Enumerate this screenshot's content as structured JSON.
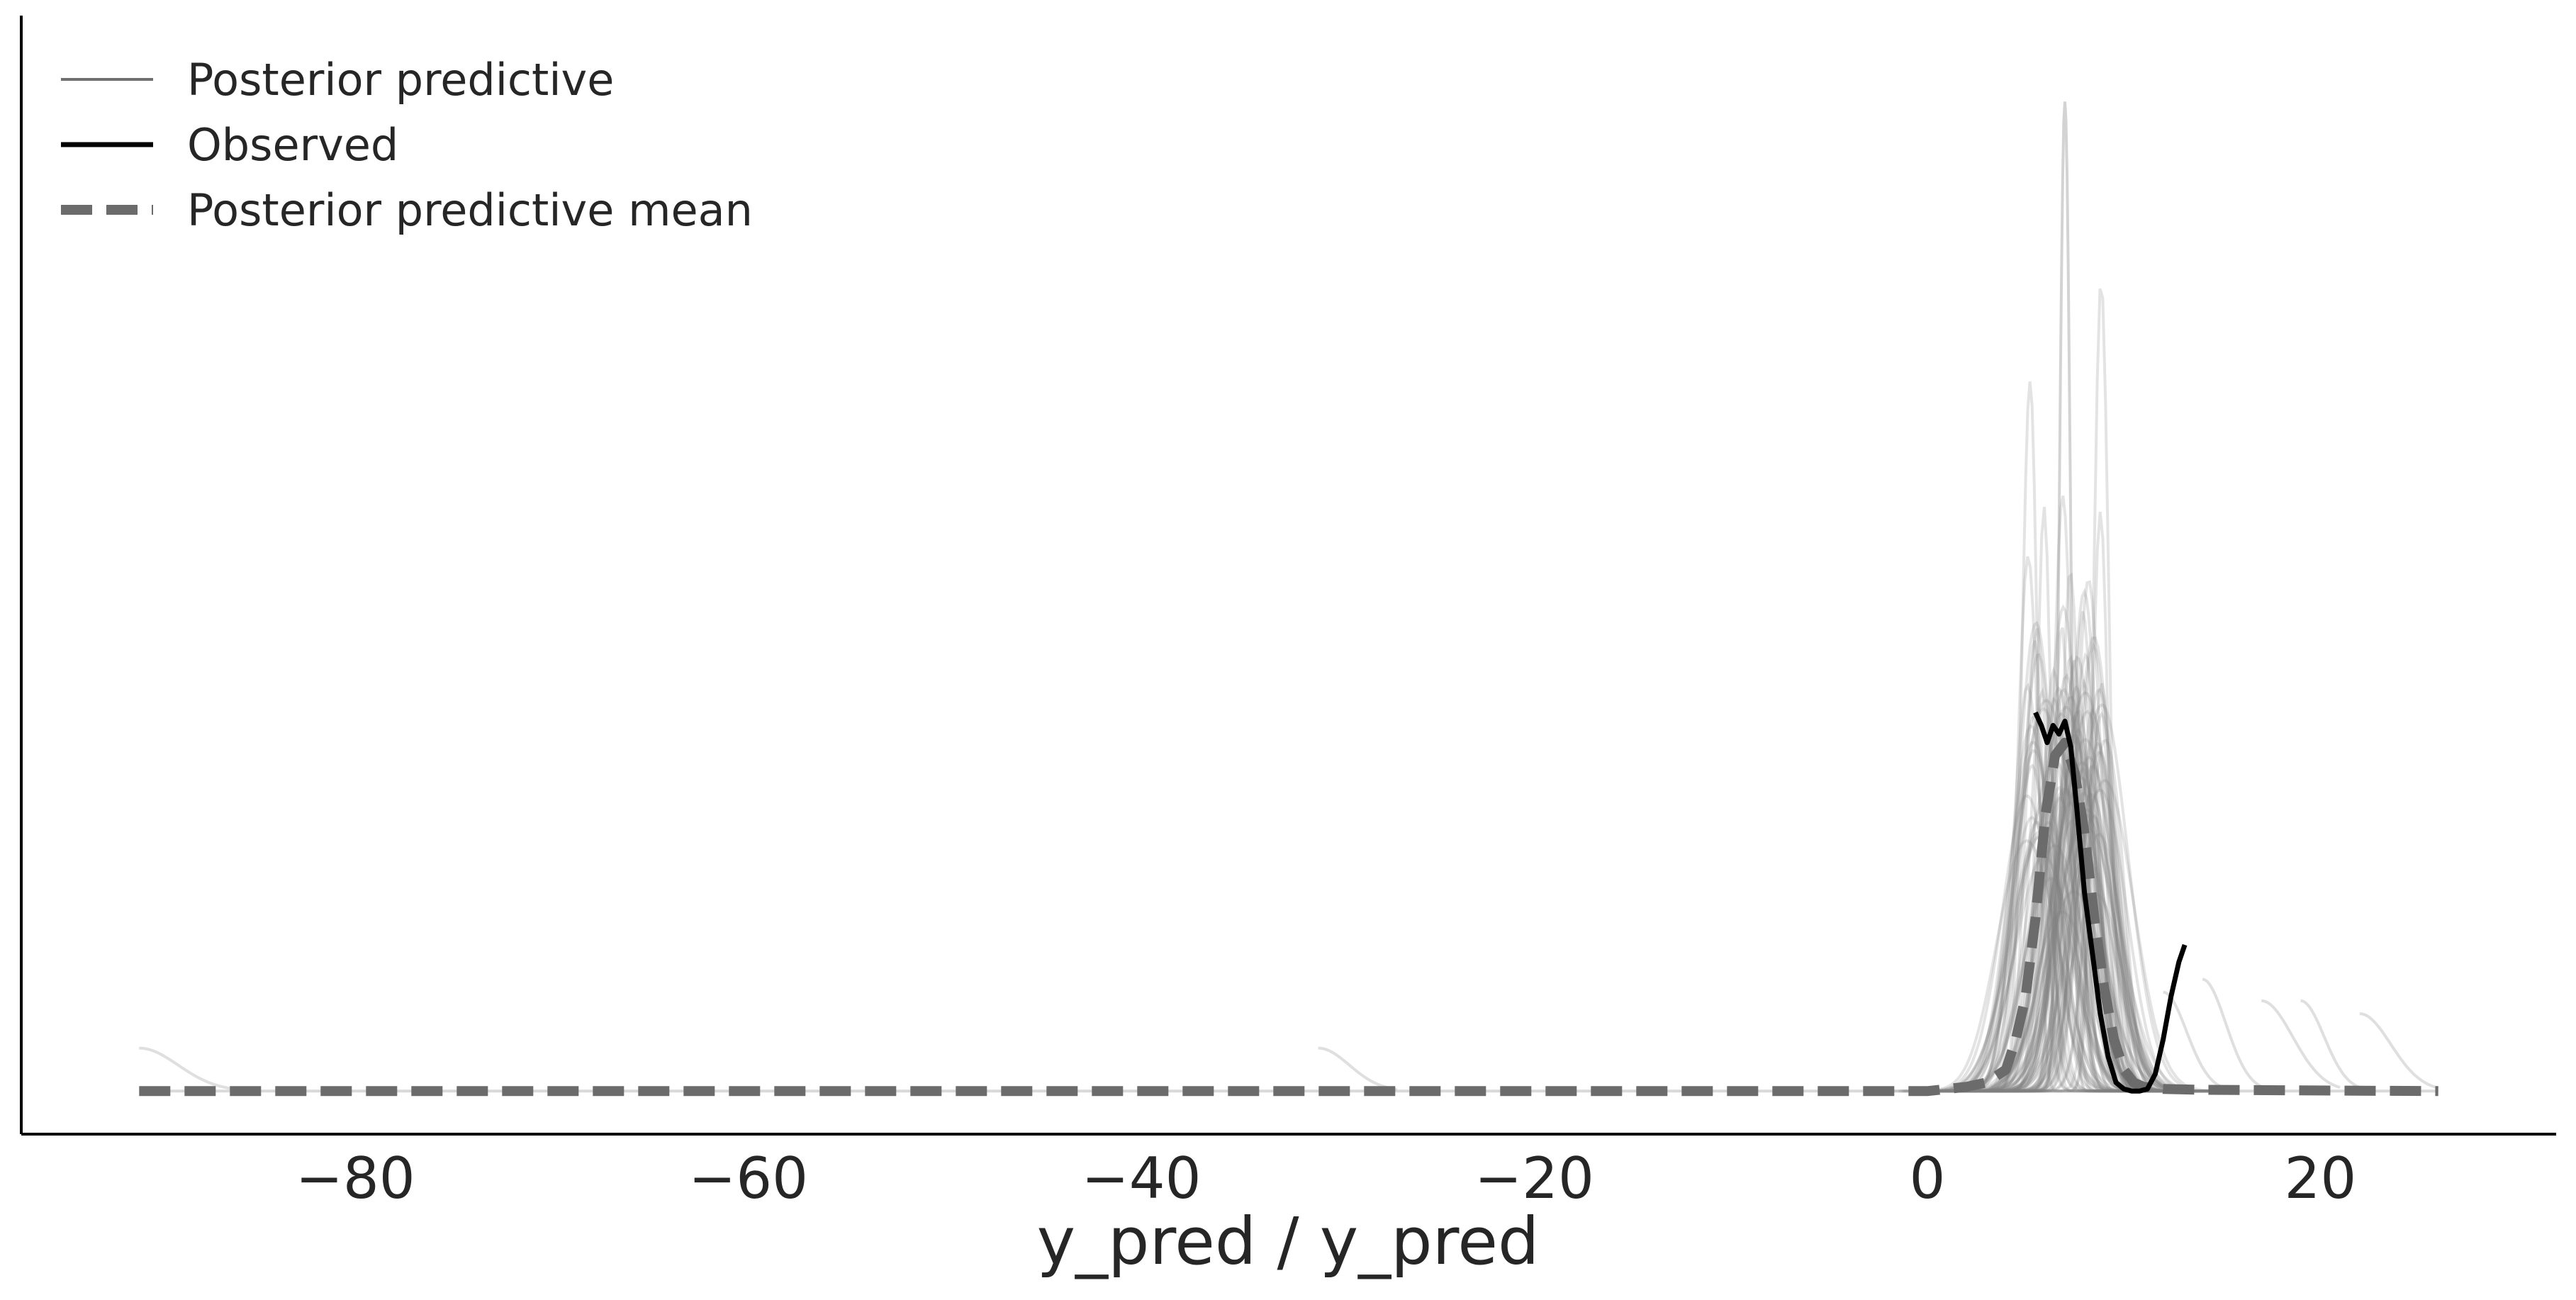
{
  "chart_data": {
    "type": "line",
    "title": "",
    "xlabel": "y_pred / y_pred",
    "ylabel": "",
    "xlim": [
      -97,
      32
    ],
    "ylim": [
      -0.01,
      0.25
    ],
    "grid": false,
    "legend_placement": "top-left",
    "x_ticks": [
      {
        "value": -80,
        "label": "−80"
      },
      {
        "value": -60,
        "label": "−60"
      },
      {
        "value": -40,
        "label": "−40"
      },
      {
        "value": -20,
        "label": "−20"
      },
      {
        "value": 0,
        "label": "0"
      },
      {
        "value": 20,
        "label": "20"
      }
    ],
    "legend": [
      {
        "label": "Posterior predictive",
        "style": "thin-solid",
        "color": "#707070"
      },
      {
        "label": "Observed",
        "style": "solid",
        "color": "#000000"
      },
      {
        "label": "Posterior predictive mean",
        "style": "dashed",
        "color": "#6b6b6b"
      }
    ],
    "series": [
      {
        "name": "Observed",
        "color": "#000000",
        "x": [
          5.5,
          5.8,
          6.1,
          6.4,
          6.7,
          7.0,
          7.3,
          7.6,
          8.0,
          8.4,
          8.8,
          9.2,
          9.6,
          10.0,
          10.4,
          10.8,
          11.2,
          11.6,
          12.0,
          12.4,
          12.8,
          13.1
        ],
        "y": [
          0.088,
          0.085,
          0.081,
          0.085,
          0.083,
          0.086,
          0.08,
          0.066,
          0.046,
          0.032,
          0.018,
          0.008,
          0.002,
          0.0005,
          0.0,
          0.0,
          0.0005,
          0.004,
          0.012,
          0.022,
          0.03,
          0.034
        ]
      },
      {
        "name": "Posterior predictive mean",
        "color": "#6b6b6b",
        "x": [
          -91,
          -60,
          -30,
          -5,
          0,
          1,
          2,
          3,
          4,
          4.5,
          5,
          5.5,
          6,
          6.5,
          7,
          7.5,
          8,
          8.5,
          9,
          9.5,
          10,
          10.5,
          11,
          12,
          14,
          18,
          22,
          26
        ],
        "y": [
          0,
          0,
          0,
          0,
          0,
          0.0005,
          0.001,
          0.002,
          0.005,
          0.012,
          0.022,
          0.04,
          0.064,
          0.078,
          0.081,
          0.074,
          0.06,
          0.04,
          0.024,
          0.012,
          0.005,
          0.002,
          0.001,
          0.0005,
          0.0003,
          0.0002,
          0.0001,
          0
        ]
      }
    ],
    "posterior_predictive_samples": {
      "count": 100,
      "color": "#808080",
      "x_range": [
        -91,
        26
      ],
      "peak_center_range": [
        5,
        9
      ],
      "max_peak": 0.23
    },
    "outlier_tails": [
      {
        "x_start": -91,
        "x_end": -86,
        "peak": 0.01
      },
      {
        "x_start": -31,
        "x_end": -27,
        "peak": 0.01
      },
      {
        "x_start": 12,
        "x_end": 15,
        "peak": 0.023
      },
      {
        "x_start": 14,
        "x_end": 17,
        "peak": 0.026
      },
      {
        "x_start": 17,
        "x_end": 21,
        "peak": 0.021
      },
      {
        "x_start": 19,
        "x_end": 22,
        "peak": 0.021
      },
      {
        "x_start": 22,
        "x_end": 26,
        "peak": 0.018
      }
    ]
  }
}
